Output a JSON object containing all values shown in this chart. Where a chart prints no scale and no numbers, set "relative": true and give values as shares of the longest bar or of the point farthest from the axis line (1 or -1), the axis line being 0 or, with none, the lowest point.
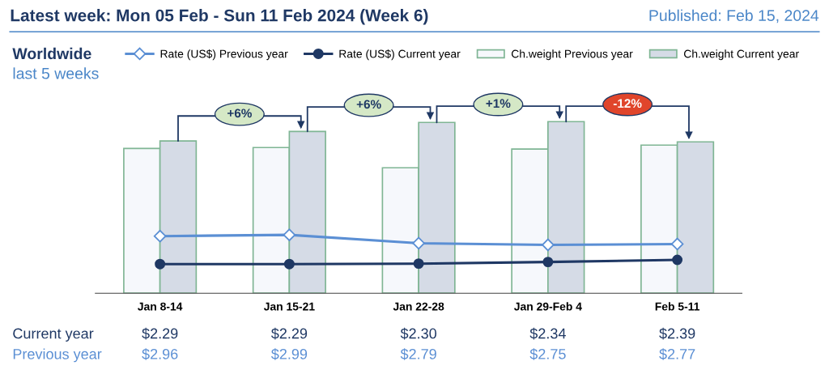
{
  "chart_data": [
    {
      "type": "bar",
      "title": "Latest week: Mon 05 Feb - Sun 11 Feb 2024 (Week 6)",
      "subtitle": "Published: Feb 15, 2024",
      "categories": [
        "Jan 8-14",
        "Jan 15-21",
        "Jan 22-28",
        "Jan 29-Feb 4",
        "Feb 5-11"
      ],
      "relative": true,
      "series": [
        {
          "name": "Ch.weight Previous year",
          "color": "#f6f8fc",
          "values": [
            0.844,
            0.849,
            0.731,
            0.84,
            0.863
          ]
        },
        {
          "name": "Ch.weight Current year",
          "color": "#d5dbe6",
          "values": [
            0.887,
            0.943,
            0.995,
            1.0,
            0.882
          ]
        }
      ],
      "legend": "top",
      "annotations": [
        "Worldwide",
        "last 5 weeks",
        "+6%",
        "+6%",
        "+1%",
        "-12%"
      ]
    },
    {
      "type": "line",
      "categories": [
        null,
        null,
        null,
        null,
        null
      ],
      "series": [
        {
          "name": "Rate (US$) Previous year",
          "color": "#5b8fd4",
          "marker": "diamond",
          "values": [
            2.96,
            2.99,
            2.79,
            2.75,
            2.77
          ],
          "value_labels": [
            "$2.96",
            "$2.99",
            "$2.79",
            "$2.75",
            "$2.77"
          ]
        },
        {
          "name": "Rate (US$) Current year",
          "color": "#1f3864",
          "marker": "circle",
          "values": [
            2.29,
            2.29,
            2.3,
            2.34,
            2.39
          ],
          "value_labels": [
            "$2.29",
            "$2.29",
            "$2.30",
            "$2.34",
            "$2.39"
          ]
        }
      ],
      "legend": "top",
      "tick_labels": false,
      "annotations": [
        "Current year",
        "Previous year"
      ]
    }
  ]
}
